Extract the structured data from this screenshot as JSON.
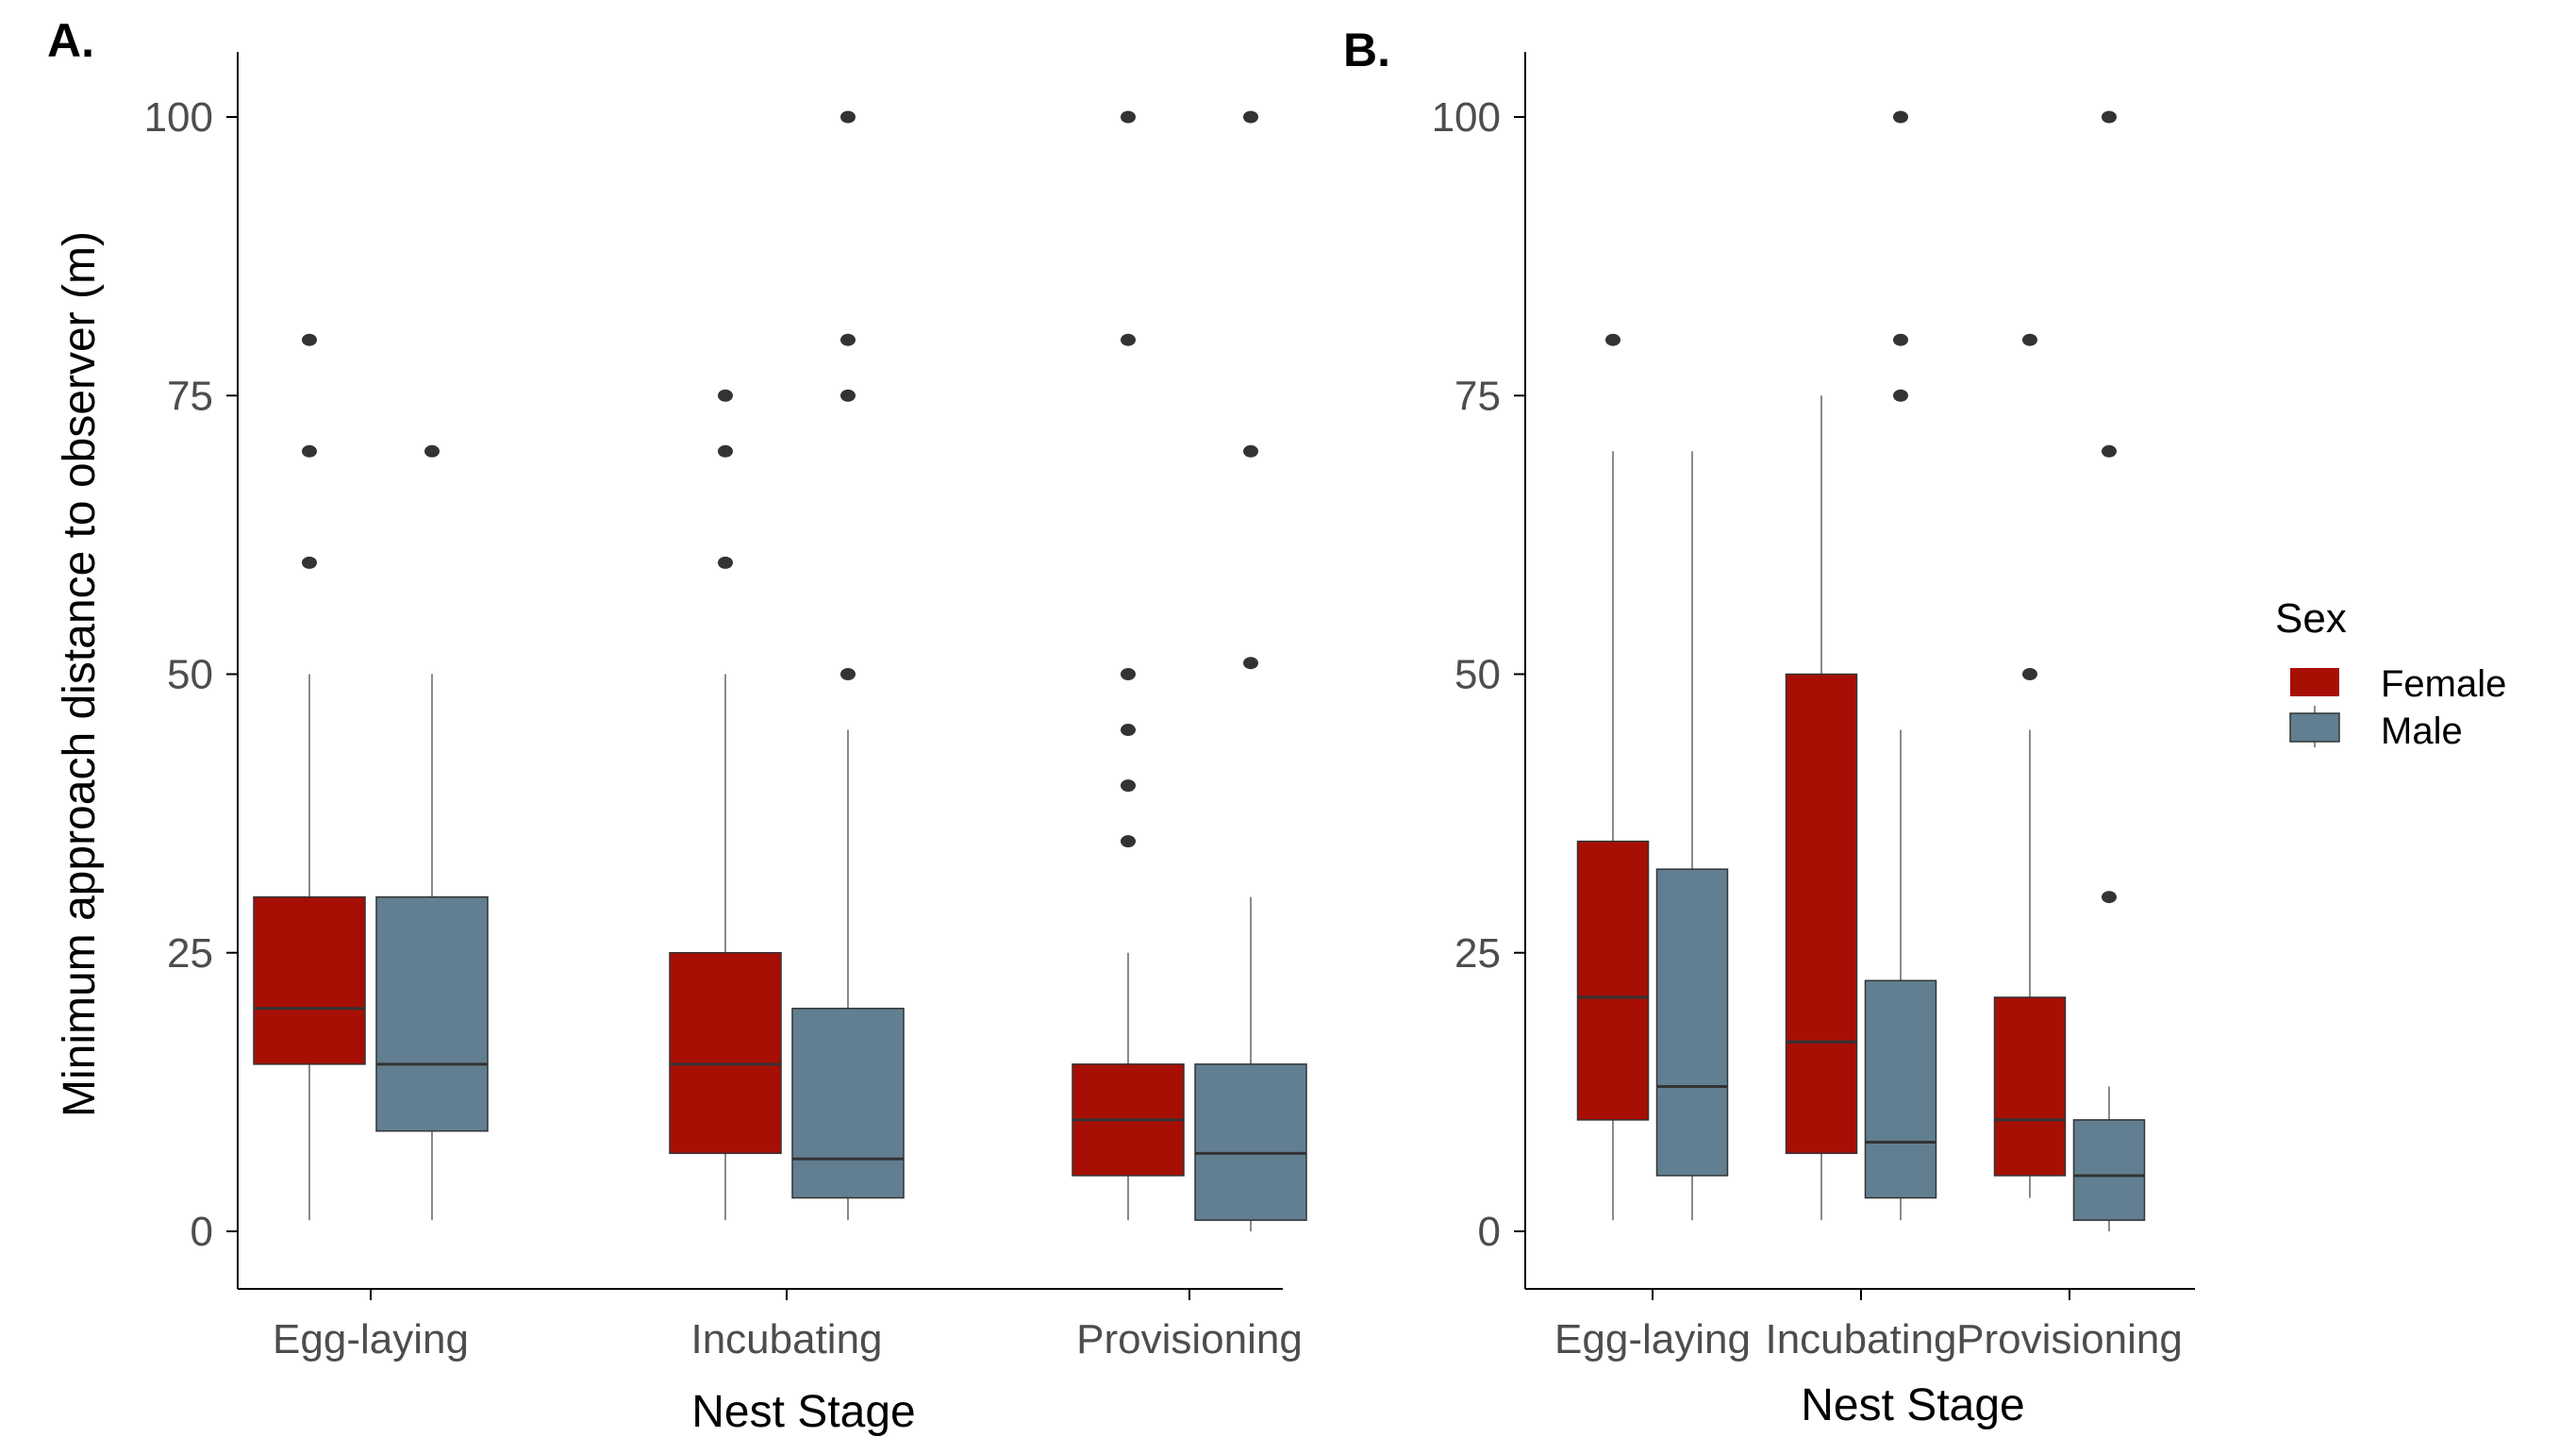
{
  "colors": {
    "Female": "#a70f05",
    "Male": "#617f91",
    "outlier": "#333333",
    "median": "#333333",
    "whisker": "#8a8a8a",
    "axis": "#000000"
  },
  "legend": {
    "title": "Sex",
    "items": [
      "Female",
      "Male"
    ]
  },
  "chart_data": [
    {
      "type": "box",
      "panel_label": "A.",
      "title": "",
      "xlabel": "Nest Stage",
      "ylabel": "Minimum approach distance to observer (m)",
      "ylim": [
        -5,
        105
      ],
      "yticks": [
        0,
        25,
        50,
        75,
        100
      ],
      "categories": [
        "Egg-laying",
        "Incubating",
        "Provisioning"
      ],
      "series": [
        {
          "name": "Female",
          "boxes": [
            {
              "min": 1,
              "q1": 15,
              "median": 20,
              "q3": 30,
              "max": 50,
              "outliers": [
                60,
                70,
                80
              ]
            },
            {
              "min": 1,
              "q1": 7,
              "median": 15,
              "q3": 25,
              "max": 50,
              "outliers": [
                60,
                70,
                75
              ]
            },
            {
              "min": 1,
              "q1": 5,
              "median": 10,
              "q3": 15,
              "max": 25,
              "outliers": [
                35,
                40,
                45,
                50,
                80,
                100
              ]
            }
          ]
        },
        {
          "name": "Male",
          "boxes": [
            {
              "min": 1,
              "q1": 9,
              "median": 15,
              "q3": 30,
              "max": 50,
              "outliers": [
                70
              ]
            },
            {
              "min": 1,
              "q1": 3,
              "median": 6.5,
              "q3": 20,
              "max": 45,
              "outliers": [
                50,
                75,
                80,
                100
              ]
            },
            {
              "min": 0,
              "q1": 1,
              "median": 7,
              "q3": 15,
              "max": 30,
              "outliers": [
                51,
                70,
                100
              ]
            }
          ]
        }
      ]
    },
    {
      "type": "box",
      "panel_label": "B.",
      "title": "",
      "xlabel": "Nest Stage",
      "ylabel": "",
      "ylim": [
        -5,
        105
      ],
      "yticks": [
        0,
        25,
        50,
        75,
        100
      ],
      "categories": [
        "Egg-laying",
        "Incubating",
        "Provisioning"
      ],
      "series": [
        {
          "name": "Female",
          "boxes": [
            {
              "min": 1,
              "q1": 10,
              "median": 21,
              "q3": 35,
              "max": 70,
              "outliers": [
                80
              ]
            },
            {
              "min": 1,
              "q1": 7,
              "median": 17,
              "q3": 50,
              "max": 75,
              "outliers": []
            },
            {
              "min": 3,
              "q1": 5,
              "median": 10,
              "q3": 21,
              "max": 45,
              "outliers": [
                50,
                80
              ]
            }
          ]
        },
        {
          "name": "Male",
          "boxes": [
            {
              "min": 1,
              "q1": 5,
              "median": 13,
              "q3": 32.5,
              "max": 70,
              "outliers": []
            },
            {
              "min": 1,
              "q1": 3,
              "median": 8,
              "q3": 22.5,
              "max": 45,
              "outliers": [
                75,
                80,
                100
              ]
            },
            {
              "min": 0,
              "q1": 1,
              "median": 5,
              "q3": 10,
              "max": 13,
              "outliers": [
                30,
                70,
                100
              ]
            }
          ]
        }
      ]
    }
  ]
}
